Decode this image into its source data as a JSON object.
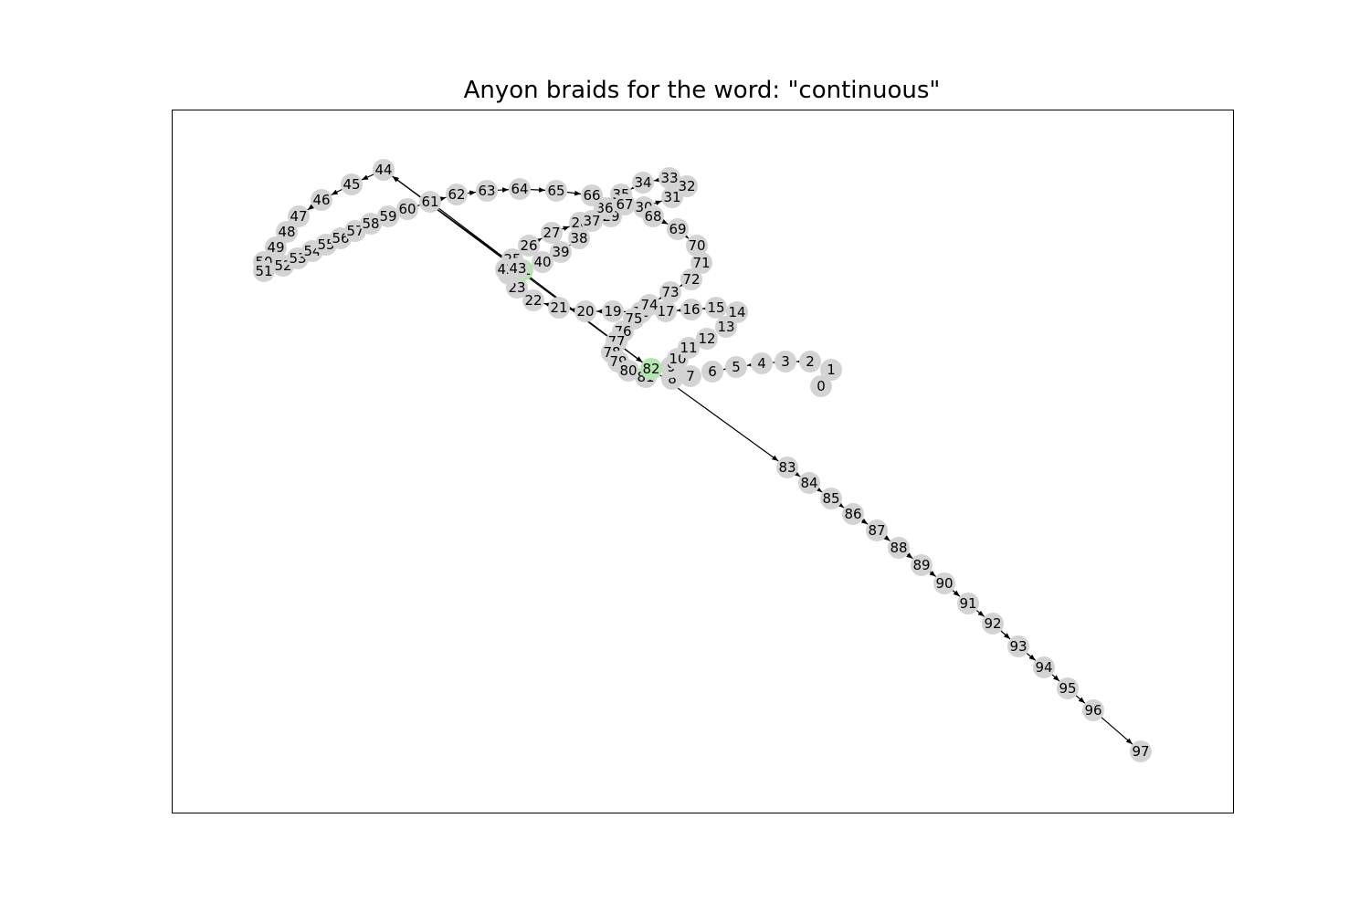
{
  "title": "Anyon braids for the word: \"continuous\"",
  "colors": {
    "node": "#d3d3d3",
    "highlight_node": "#b5e6b0",
    "edge": "#000000",
    "frame": "#000000"
  },
  "highlighted_nodes": [
    "41",
    "82"
  ],
  "nodes": [
    "0",
    "1",
    "2",
    "3",
    "4",
    "5",
    "6",
    "7",
    "8",
    "9",
    "10",
    "11",
    "12",
    "13",
    "14",
    "15",
    "16",
    "17",
    "18",
    "19",
    "20",
    "21",
    "22",
    "23",
    "24",
    "25",
    "26",
    "27",
    "28",
    "29",
    "30",
    "31",
    "32",
    "33",
    "34",
    "35",
    "36",
    "37",
    "38",
    "39",
    "40",
    "41",
    "42",
    "43",
    "44",
    "45",
    "46",
    "47",
    "48",
    "49",
    "50",
    "51",
    "52",
    "53",
    "54",
    "55",
    "56",
    "57",
    "58",
    "59",
    "60",
    "61",
    "62",
    "63",
    "64",
    "65",
    "66",
    "67",
    "68",
    "69",
    "70",
    "71",
    "72",
    "73",
    "74",
    "75",
    "76",
    "77",
    "78",
    "79",
    "80",
    "81",
    "82",
    "83",
    "84",
    "85",
    "86",
    "87",
    "88",
    "89",
    "90",
    "91",
    "92",
    "93",
    "94",
    "95",
    "96",
    "97"
  ],
  "edges": [
    [
      "0",
      "1"
    ],
    [
      "1",
      "2"
    ],
    [
      "2",
      "3"
    ],
    [
      "3",
      "4"
    ],
    [
      "4",
      "5"
    ],
    [
      "5",
      "6"
    ],
    [
      "6",
      "7"
    ],
    [
      "7",
      "8"
    ],
    [
      "8",
      "9"
    ],
    [
      "9",
      "10"
    ],
    [
      "10",
      "11"
    ],
    [
      "11",
      "12"
    ],
    [
      "12",
      "13"
    ],
    [
      "13",
      "14"
    ],
    [
      "14",
      "15"
    ],
    [
      "15",
      "16"
    ],
    [
      "16",
      "17"
    ],
    [
      "17",
      "18"
    ],
    [
      "18",
      "19"
    ],
    [
      "19",
      "20"
    ],
    [
      "20",
      "21"
    ],
    [
      "21",
      "22"
    ],
    [
      "22",
      "23"
    ],
    [
      "23",
      "24"
    ],
    [
      "24",
      "25"
    ],
    [
      "25",
      "26"
    ],
    [
      "26",
      "27"
    ],
    [
      "27",
      "28"
    ],
    [
      "28",
      "29"
    ],
    [
      "29",
      "30"
    ],
    [
      "30",
      "31"
    ],
    [
      "31",
      "32"
    ],
    [
      "32",
      "33"
    ],
    [
      "33",
      "34"
    ],
    [
      "34",
      "35"
    ],
    [
      "35",
      "36"
    ],
    [
      "36",
      "37"
    ],
    [
      "37",
      "38"
    ],
    [
      "38",
      "39"
    ],
    [
      "39",
      "40"
    ],
    [
      "40",
      "41"
    ],
    [
      "41",
      "42"
    ],
    [
      "42",
      "43"
    ],
    [
      "43",
      "44"
    ],
    [
      "44",
      "45"
    ],
    [
      "45",
      "46"
    ],
    [
      "46",
      "47"
    ],
    [
      "47",
      "48"
    ],
    [
      "48",
      "49"
    ],
    [
      "49",
      "50"
    ],
    [
      "50",
      "51"
    ],
    [
      "51",
      "52"
    ],
    [
      "52",
      "53"
    ],
    [
      "53",
      "54"
    ],
    [
      "54",
      "55"
    ],
    [
      "55",
      "56"
    ],
    [
      "56",
      "57"
    ],
    [
      "57",
      "58"
    ],
    [
      "58",
      "59"
    ],
    [
      "59",
      "60"
    ],
    [
      "60",
      "61"
    ],
    [
      "61",
      "62"
    ],
    [
      "62",
      "63"
    ],
    [
      "63",
      "64"
    ],
    [
      "64",
      "65"
    ],
    [
      "65",
      "66"
    ],
    [
      "66",
      "67"
    ],
    [
      "67",
      "68"
    ],
    [
      "68",
      "69"
    ],
    [
      "69",
      "70"
    ],
    [
      "70",
      "71"
    ],
    [
      "71",
      "72"
    ],
    [
      "72",
      "73"
    ],
    [
      "73",
      "74"
    ],
    [
      "74",
      "75"
    ],
    [
      "75",
      "76"
    ],
    [
      "76",
      "77"
    ],
    [
      "77",
      "78"
    ],
    [
      "78",
      "79"
    ],
    [
      "79",
      "80"
    ],
    [
      "80",
      "81"
    ],
    [
      "81",
      "82"
    ],
    [
      "82",
      "83"
    ],
    [
      "83",
      "84"
    ],
    [
      "84",
      "85"
    ],
    [
      "85",
      "86"
    ],
    [
      "86",
      "87"
    ],
    [
      "87",
      "88"
    ],
    [
      "88",
      "89"
    ],
    [
      "89",
      "90"
    ],
    [
      "90",
      "91"
    ],
    [
      "91",
      "92"
    ],
    [
      "92",
      "93"
    ],
    [
      "93",
      "94"
    ],
    [
      "94",
      "95"
    ],
    [
      "95",
      "96"
    ],
    [
      "96",
      "97"
    ],
    [
      "61",
      "82"
    ],
    [
      "82",
      "44"
    ]
  ]
}
